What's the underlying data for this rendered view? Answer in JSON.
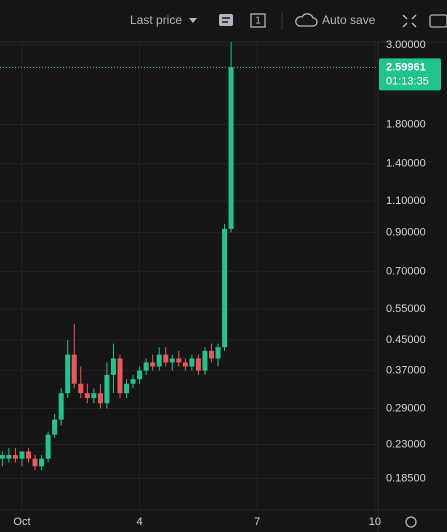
{
  "toolbar": {
    "price_mode": "Last price",
    "interval_badge": "1",
    "autosave": "Auto save"
  },
  "chart_data": {
    "type": "candlestick",
    "log_scale": true,
    "grid": true,
    "up_color": "#22c48e",
    "down_color": "#f0555f",
    "xlim": [
      0.44,
      10.08
    ],
    "ylim": [
      0.151,
      3.06
    ],
    "xticks": [
      {
        "value": 1,
        "label": "Oct"
      },
      4,
      7,
      10
    ],
    "yticks": [
      {
        "value": 3,
        "label": "3.00000"
      },
      {
        "value": 1.8,
        "label": "1.80000"
      },
      {
        "value": 1.4,
        "label": "1.40000"
      },
      {
        "value": 1.1,
        "label": "1.10000"
      },
      {
        "value": 0.9,
        "label": "0.90000"
      },
      {
        "value": 0.7,
        "label": "0.70000"
      },
      {
        "value": 0.55,
        "label": "0.55000"
      },
      {
        "value": 0.45,
        "label": "0.45000"
      },
      {
        "value": 0.37,
        "label": "0.37000"
      },
      {
        "value": 0.29,
        "label": "0.29000"
      },
      {
        "value": 0.23,
        "label": "0.23000"
      },
      {
        "value": 0.185,
        "label": "0.18500"
      }
    ],
    "last_price": {
      "value": 2.59961,
      "countdown": "01:13:35"
    },
    "x": [
      0.5,
      0.667,
      0.833,
      1,
      1.167,
      1.333,
      1.5,
      1.667,
      1.833,
      2,
      2.167,
      2.333,
      2.5,
      2.667,
      2.833,
      3,
      3.167,
      3.333,
      3.5,
      3.667,
      3.833,
      4,
      4.167,
      4.333,
      4.5,
      4.667,
      4.833,
      5,
      5.167,
      5.333,
      5.5,
      5.667,
      5.833,
      6,
      6.167,
      6.333
    ],
    "open": [
      0.21,
      0.21,
      0.215,
      0.21,
      0.22,
      0.21,
      0.2,
      0.21,
      0.245,
      0.27,
      0.32,
      0.41,
      0.34,
      0.32,
      0.31,
      0.32,
      0.3,
      0.36,
      0.4,
      0.32,
      0.34,
      0.35,
      0.37,
      0.39,
      0.38,
      0.41,
      0.39,
      0.4,
      0.39,
      0.38,
      0.4,
      0.37,
      0.42,
      0.4,
      0.43,
      0.92
    ],
    "high": [
      0.22,
      0.225,
      0.225,
      0.22,
      0.225,
      0.215,
      0.215,
      0.25,
      0.28,
      0.33,
      0.45,
      0.5,
      0.38,
      0.34,
      0.33,
      0.34,
      0.39,
      0.44,
      0.41,
      0.35,
      0.36,
      0.38,
      0.4,
      0.41,
      0.43,
      0.43,
      0.41,
      0.42,
      0.4,
      0.41,
      0.41,
      0.43,
      0.44,
      0.44,
      0.95,
      3.06
    ],
    "low": [
      0.2,
      0.205,
      0.205,
      0.2,
      0.205,
      0.195,
      0.195,
      0.205,
      0.24,
      0.26,
      0.31,
      0.33,
      0.31,
      0.3,
      0.3,
      0.29,
      0.29,
      0.32,
      0.31,
      0.31,
      0.33,
      0.34,
      0.36,
      0.37,
      0.37,
      0.38,
      0.37,
      0.38,
      0.37,
      0.37,
      0.36,
      0.36,
      0.39,
      0.38,
      0.42,
      0.9
    ],
    "close": [
      0.215,
      0.215,
      0.21,
      0.22,
      0.21,
      0.2,
      0.21,
      0.245,
      0.27,
      0.32,
      0.41,
      0.34,
      0.32,
      0.31,
      0.32,
      0.3,
      0.36,
      0.4,
      0.32,
      0.34,
      0.35,
      0.37,
      0.39,
      0.38,
      0.41,
      0.39,
      0.4,
      0.39,
      0.38,
      0.4,
      0.37,
      0.42,
      0.4,
      0.43,
      0.92,
      2.59961
    ]
  }
}
